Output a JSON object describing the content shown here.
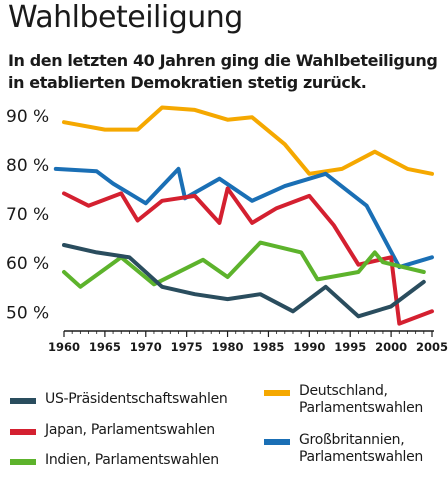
{
  "title": "Wahlbeteiligung",
  "subtitle": "In den letzten 40 Jahren ging die Wahlbeteiligung in etablierten Demokratien stetig zurück.",
  "chart_data": {
    "type": "line",
    "xlim": [
      1960,
      2005
    ],
    "ylim": [
      46,
      92
    ],
    "x_ticks": [
      1960,
      1965,
      1970,
      1975,
      1980,
      1985,
      1990,
      1995,
      2000,
      2005
    ],
    "y_ticks": [
      50,
      60,
      70,
      80,
      90
    ],
    "y_tick_labels": [
      "50 %",
      "60 %",
      "70 %",
      "80 %",
      "90 %"
    ],
    "grid": false,
    "legend_position": "bottom",
    "series": [
      {
        "name": "Deutschland, Parlamentswahlen",
        "color": "#f5a800",
        "points": [
          [
            1960,
            88.5
          ],
          [
            1965,
            87
          ],
          [
            1969,
            87
          ],
          [
            1972,
            91.5
          ],
          [
            1976,
            91
          ],
          [
            1980,
            89
          ],
          [
            1983,
            89.5
          ],
          [
            1987,
            84
          ],
          [
            1990,
            78
          ],
          [
            1994,
            79
          ],
          [
            1998,
            82.5
          ],
          [
            2002,
            79
          ],
          [
            2005,
            78
          ]
        ]
      },
      {
        "name": "Großbritannien, Parlamentswahlen",
        "color": "#1a6fb5",
        "points": [
          [
            1959,
            79
          ],
          [
            1964,
            78.5
          ],
          [
            1966,
            76
          ],
          [
            1970,
            72
          ],
          [
            1974,
            79
          ],
          [
            1974.8,
            73
          ],
          [
            1979,
            77
          ],
          [
            1983,
            72.5
          ],
          [
            1987,
            75.5
          ],
          [
            1992,
            78
          ],
          [
            1997,
            71.5
          ],
          [
            2001,
            59
          ],
          [
            2005,
            61
          ]
        ]
      },
      {
        "name": "Japan, Parlamentswahlen",
        "color": "#d42030",
        "points": [
          [
            1960,
            74
          ],
          [
            1963,
            71.5
          ],
          [
            1967,
            74
          ],
          [
            1969,
            68.5
          ],
          [
            1972,
            72.5
          ],
          [
            1976,
            73.5
          ],
          [
            1979,
            68
          ],
          [
            1980,
            75
          ],
          [
            1983,
            68
          ],
          [
            1986,
            71
          ],
          [
            1990,
            73.5
          ],
          [
            1993,
            67.5
          ],
          [
            1996,
            59.5
          ],
          [
            2000,
            61
          ],
          [
            2001,
            47.5
          ],
          [
            2005,
            50
          ]
        ]
      },
      {
        "name": "Indien, Parlamentswahlen",
        "color": "#5db32c",
        "points": [
          [
            1960,
            58
          ],
          [
            1962,
            55
          ],
          [
            1967,
            61
          ],
          [
            1971,
            55.5
          ],
          [
            1977,
            60.5
          ],
          [
            1980,
            57
          ],
          [
            1984,
            64
          ],
          [
            1989,
            62
          ],
          [
            1991,
            56.5
          ],
          [
            1996,
            58
          ],
          [
            1998,
            62
          ],
          [
            1999,
            60
          ],
          [
            2004,
            58
          ]
        ]
      },
      {
        "name": "US-Präsidentschaftswahlen",
        "color": "#2a4d5e",
        "points": [
          [
            1960,
            63.5
          ],
          [
            1964,
            62
          ],
          [
            1968,
            61
          ],
          [
            1972,
            55
          ],
          [
            1976,
            53.5
          ],
          [
            1980,
            52.5
          ],
          [
            1984,
            53.5
          ],
          [
            1988,
            50
          ],
          [
            1992,
            55
          ],
          [
            1996,
            49
          ],
          [
            2000,
            51
          ],
          [
            2004,
            56
          ]
        ]
      }
    ]
  },
  "legend": [
    {
      "label": "US-Präsidentschaftswahlen",
      "color": "#2a4d5e"
    },
    {
      "label": "Japan, Parlamentswahlen",
      "color": "#d42030"
    },
    {
      "label": "Indien, Parlamentswahlen",
      "color": "#5db32c"
    },
    {
      "label": "Deutschland,\nParlamentswahlen",
      "color": "#f5a800"
    },
    {
      "label": "Großbritannien,\nParlamentswahlen",
      "color": "#1a6fb5"
    }
  ]
}
